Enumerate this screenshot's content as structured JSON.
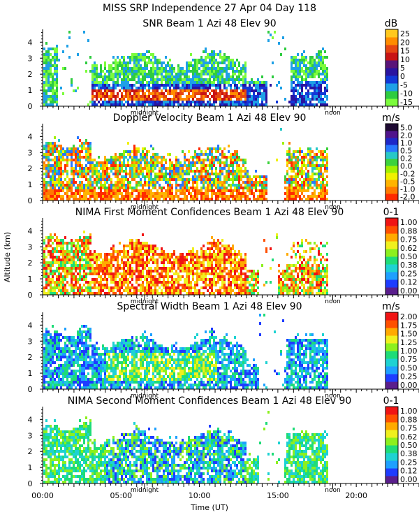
{
  "figure": {
    "title_line1": "MISS SRP Independence  27 Apr 04 Day 118",
    "ylabel": "Altitude (km)",
    "xlabel": "Time (UT)",
    "x_ticks": [
      "00:00",
      "05:00",
      "10:00",
      "15:00",
      "20:00"
    ],
    "markers": {
      "midnight": "midnight",
      "noon": "noon"
    }
  },
  "colors": {
    "snr": [
      "#7cfc3c",
      "#2ecc40",
      "#1ea0e6",
      "#1238d8",
      "#2a14a0",
      "#5a1478",
      "#c81414",
      "#e64612",
      "#ff8c00",
      "#ffc81e"
    ],
    "doppler": [
      "#ff2a00",
      "#ff7a00",
      "#ffb400",
      "#f0f000",
      "#a0f000",
      "#3cd23c",
      "#28c8c8",
      "#2878ff",
      "#1e28c8",
      "#50148c",
      "#1e0a32"
    ],
    "conf": [
      "#5a1e8c",
      "#1e3cff",
      "#1ea0ff",
      "#1ed2d2",
      "#1edc78",
      "#8cf01e",
      "#f0f01e",
      "#ffaa00",
      "#ff5000",
      "#f01414"
    ],
    "width": [
      "#5a1e8c",
      "#1e3cff",
      "#1ea0ff",
      "#1ed2d2",
      "#1edc78",
      "#8cf01e",
      "#f0f01e",
      "#ffaa00",
      "#ff5000",
      "#f01414"
    ]
  },
  "chart_data": [
    {
      "type": "heatmap",
      "title": "SNR Beam 1 Azi  48 Elev 90",
      "ylabel": "Altitude (km)",
      "ylim": [
        0,
        4.8
      ],
      "y_ticks": [
        "0",
        "1",
        "2",
        "3",
        "4"
      ],
      "xlim": [
        "00:00",
        "24:00"
      ],
      "colorbar_unit": "dB",
      "colorbar_labels": [
        "-15",
        "-10",
        "-5",
        "0",
        "5",
        "10",
        "15",
        "20",
        "25"
      ],
      "palette": "snr",
      "data_extent_hours": [
        0.0,
        18.1
      ],
      "data_gap_hours": [
        [
          0.9,
          3.0
        ],
        [
          14.3,
          15.8
        ]
      ]
    },
    {
      "type": "heatmap",
      "title": "Doppler Velocity Beam 1 Azi  48 Elev 90",
      "ylabel": "Altitude (km)",
      "ylim": [
        0,
        4.8
      ],
      "y_ticks": [
        "0",
        "1",
        "2",
        "3",
        "4"
      ],
      "xlim": [
        "00:00",
        "24:00"
      ],
      "colorbar_unit": "m/s",
      "colorbar_labels": [
        "-2.0",
        "-1.0",
        "-0.5",
        "-0.2",
        "0.0",
        "0.2",
        "0.5",
        "1.0",
        "2.0",
        "5.0"
      ],
      "palette": "doppler",
      "data_extent_hours": [
        0.0,
        18.1
      ],
      "data_gap_hours": [
        [
          14.3,
          15.4
        ]
      ]
    },
    {
      "type": "heatmap",
      "title": "NIMA First Moment Confidences Beam 1 Azi  48 Elev 90",
      "ylabel": "Altitude (km)",
      "ylim": [
        0,
        4.8
      ],
      "y_ticks": [
        "0",
        "1",
        "2",
        "3",
        "4"
      ],
      "xlim": [
        "00:00",
        "24:00"
      ],
      "colorbar_unit": "0-1",
      "colorbar_labels": [
        "0.00",
        "0.12",
        "0.25",
        "0.38",
        "0.50",
        "0.62",
        "0.75",
        "0.88",
        "1.00"
      ],
      "palette": "conf",
      "data_extent_hours": [
        0.0,
        18.1
      ],
      "data_gap_hours": [
        [
          13.8,
          15.0
        ]
      ]
    },
    {
      "type": "heatmap",
      "title": "Spectral Width Beam 1 Azi  48 Elev 90",
      "ylabel": "Altitude (km)",
      "ylim": [
        0,
        4.8
      ],
      "y_ticks": [
        "0",
        "1",
        "2",
        "3",
        "4"
      ],
      "xlim": [
        "00:00",
        "24:00"
      ],
      "colorbar_unit": "m/s",
      "colorbar_labels": [
        "0.00",
        "0.25",
        "0.50",
        "0.75",
        "1.00",
        "1.25",
        "1.50",
        "1.75",
        "2.00"
      ],
      "palette": "width",
      "data_extent_hours": [
        0.0,
        18.1
      ],
      "data_gap_hours": [
        [
          13.8,
          15.3
        ]
      ]
    },
    {
      "type": "heatmap",
      "title": "NIMA Second Moment Confidences Beam 1 Azi  48 Elev 90",
      "ylabel": "Altitude (km)",
      "ylim": [
        0,
        4.8
      ],
      "y_ticks": [
        "0",
        "1",
        "2",
        "3",
        "4"
      ],
      "xlim": [
        "00:00",
        "24:00"
      ],
      "colorbar_unit": "0-1",
      "colorbar_labels": [
        "0.00",
        "0.12",
        "0.25",
        "0.38",
        "0.50",
        "0.62",
        "0.75",
        "0.88",
        "1.00"
      ],
      "palette": "conf",
      "data_extent_hours": [
        0.0,
        18.1
      ],
      "data_gap_hours": [
        [
          13.8,
          15.3
        ]
      ]
    }
  ]
}
